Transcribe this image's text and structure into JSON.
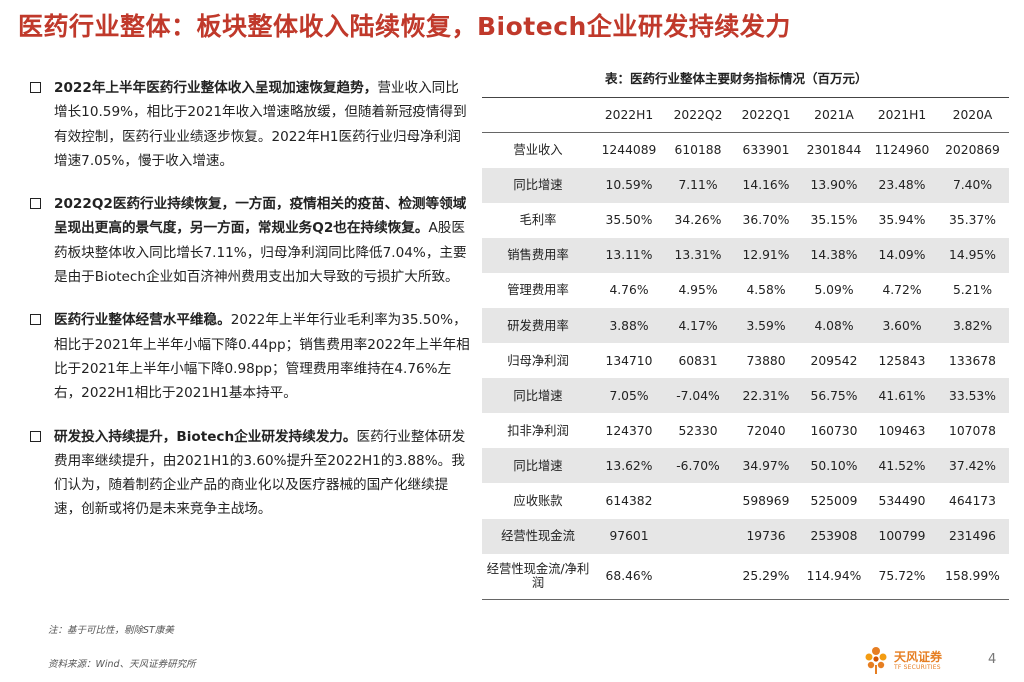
{
  "title": "医药行业整体：板块整体收入陆续恢复，Biotech企业研发持续发力",
  "bullets": [
    {
      "lead": "2022年上半年医药行业整体收入呈现加速恢复趋势，",
      "body": "营业收入同比增长10.59%，相比于2021年收入增速略放缓，但随着新冠疫情得到有效控制，医药行业业绩逐步恢复。2022年H1医药行业归母净利润增速7.05%，慢于收入增速。"
    },
    {
      "lead": "2022Q2医药行业持续恢复，一方面，疫情相关的疫苗、检测等领域呈现出更高的景气度，另一方面，常规业务Q2也在持续恢复。",
      "body": "A股医药板块整体收入同比增长7.11%，归母净利润同比降低7.04%，主要是由于Biotech企业如百济神州费用支出加大导致的亏损扩大所致。"
    },
    {
      "lead": "医药行业整体经营水平维稳。",
      "body": "2022年上半年行业毛利率为35.50%，相比于2021年上半年小幅下降0.44pp；销售费用率2022年上半年相比于2021年上半年小幅下降0.98pp；管理费用率维持在4.76%左右，2022H1相比于2021H1基本持平。"
    },
    {
      "lead": "研发投入持续提升，Biotech企业研发持续发力。",
      "body": "医药行业整体研发费用率继续提升，由2021H1的3.60%提升至2022H1的3.88%。我们认为，随着制药企业产品的商业化以及医疗器械的国产化继续提速，创新或将仍是未来竞争主战场。"
    }
  ],
  "table": {
    "caption": "表：医药行业整体主要财务指标情况（百万元）",
    "columns": [
      "",
      "2022H1",
      "2022Q2",
      "2022Q1",
      "2021A",
      "2021H1",
      "2020A"
    ],
    "rows": [
      {
        "label": "营业收入",
        "cells": [
          "1244089",
          "610188",
          "633901",
          "2301844",
          "1124960",
          "2020869"
        ]
      },
      {
        "label": "同比增速",
        "cells": [
          "10.59%",
          "7.11%",
          "14.16%",
          "13.90%",
          "23.48%",
          "7.40%"
        ]
      },
      {
        "label": "毛利率",
        "cells": [
          "35.50%",
          "34.26%",
          "36.70%",
          "35.15%",
          "35.94%",
          "35.37%"
        ]
      },
      {
        "label": "销售费用率",
        "cells": [
          "13.11%",
          "13.31%",
          "12.91%",
          "14.38%",
          "14.09%",
          "14.95%"
        ]
      },
      {
        "label": "管理费用率",
        "cells": [
          "4.76%",
          "4.95%",
          "4.58%",
          "5.09%",
          "4.72%",
          "5.21%"
        ]
      },
      {
        "label": "研发费用率",
        "cells": [
          "3.88%",
          "4.17%",
          "3.59%",
          "4.08%",
          "3.60%",
          "3.82%"
        ]
      },
      {
        "label": "归母净利润",
        "cells": [
          "134710",
          "60831",
          "73880",
          "209542",
          "125843",
          "133678"
        ]
      },
      {
        "label": "同比增速",
        "cells": [
          "7.05%",
          "-7.04%",
          "22.31%",
          "56.75%",
          "41.61%",
          "33.53%"
        ]
      },
      {
        "label": "扣非净利润",
        "cells": [
          "124370",
          "52330",
          "72040",
          "160730",
          "109463",
          "107078"
        ]
      },
      {
        "label": "同比增速",
        "cells": [
          "13.62%",
          "-6.70%",
          "34.97%",
          "50.10%",
          "41.52%",
          "37.42%"
        ]
      },
      {
        "label": "应收账款",
        "cells": [
          "614382",
          "",
          "598969",
          "525009",
          "534490",
          "464173"
        ]
      },
      {
        "label": "经营性现金流",
        "cells": [
          "97601",
          "",
          "19736",
          "253908",
          "100799",
          "231496"
        ]
      },
      {
        "label": "经营性现金流/净利润",
        "cells": [
          "68.46%",
          "",
          "25.29%",
          "114.94%",
          "75.72%",
          "158.99%"
        ]
      }
    ]
  },
  "note": "注：基于可比性，剔除ST康美",
  "source": "资料来源：Wind、天风证券研究所",
  "logo": {
    "name": "天风证券",
    "sub": "TF SECURITIES",
    "icon": "tf-flower-logo-icon",
    "color": "#e67e22"
  },
  "page_number": "4",
  "colors": {
    "title": "#c0392b",
    "row_shade": "#e6e6e6"
  }
}
